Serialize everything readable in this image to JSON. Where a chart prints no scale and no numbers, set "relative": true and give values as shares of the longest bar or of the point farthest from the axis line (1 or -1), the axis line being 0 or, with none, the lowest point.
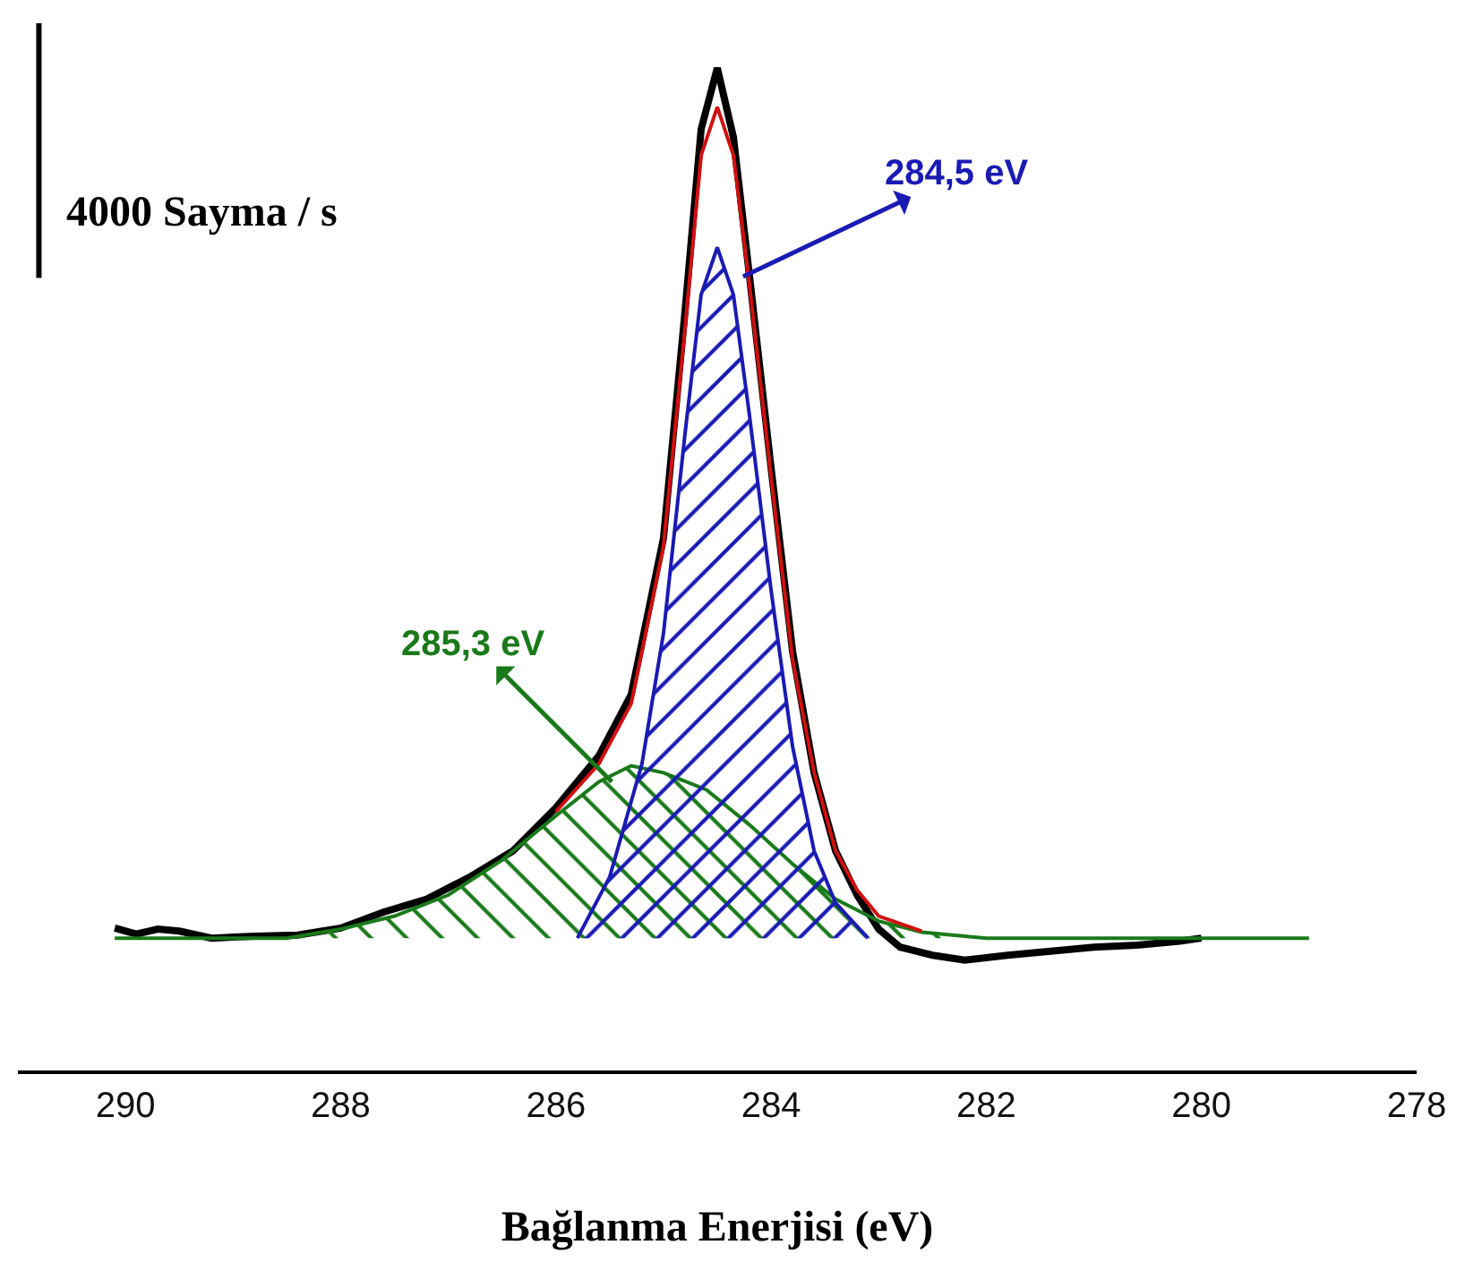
{
  "chart_data": {
    "type": "line",
    "relative": true,
    "xlabel": "Bağlanma Enerjisi (eV)",
    "xlim": [
      291,
      278
    ],
    "xticks": [
      290,
      288,
      286,
      284,
      282,
      280,
      278
    ],
    "grid": false,
    "tick_labels": "x",
    "marker": "none",
    "line_style": "solid",
    "annotations": [
      "4000 Sayma / s",
      {
        "text": "284,5 eV",
        "x": 284.26,
        "y": 0.792
      },
      {
        "text": "285,3 eV",
        "x": 285.48,
        "y": 0.288
      }
    ],
    "series": [
      {
        "color": "#000000",
        "x": [
          290.1,
          289.9,
          289.7,
          289.5,
          289.2,
          288.8,
          288.4,
          288.0,
          287.6,
          287.2,
          286.8,
          286.4,
          286.0,
          285.6,
          285.3,
          285.0,
          284.8,
          284.65,
          284.5,
          284.35,
          284.2,
          284.0,
          283.8,
          283.6,
          283.4,
          283.2,
          283.0,
          282.8,
          282.5,
          282.2,
          281.8,
          281.4,
          281.0,
          280.6,
          280.2,
          280.0
        ],
        "values": [
          0.142,
          0.136,
          0.141,
          0.139,
          0.132,
          0.134,
          0.135,
          0.142,
          0.158,
          0.171,
          0.193,
          0.219,
          0.262,
          0.314,
          0.375,
          0.531,
          0.757,
          0.939,
          1.0,
          0.931,
          0.792,
          0.601,
          0.418,
          0.297,
          0.219,
          0.175,
          0.141,
          0.123,
          0.115,
          0.11,
          0.115,
          0.119,
          0.123,
          0.125,
          0.129,
          0.132
        ]
      },
      {
        "type": "area",
        "color": "#1a7a1a",
        "x": [
          290.1,
          288.5,
          288.0,
          287.5,
          287.0,
          286.5,
          286.0,
          285.6,
          285.3,
          285.0,
          284.6,
          284.2,
          283.8,
          283.4,
          283.0,
          282.6,
          282.0,
          279.0
        ],
        "values": [
          0.132,
          0.132,
          0.141,
          0.154,
          0.175,
          0.21,
          0.254,
          0.288,
          0.304,
          0.297,
          0.28,
          0.245,
          0.206,
          0.171,
          0.149,
          0.138,
          0.132,
          0.132
        ]
      },
      {
        "type": "area",
        "color": "#1a1ab4",
        "x": [
          285.8,
          285.5,
          285.2,
          285.0,
          284.8,
          284.65,
          284.5,
          284.35,
          284.2,
          284.0,
          283.8,
          283.6,
          283.4,
          283.1
        ],
        "values": [
          0.132,
          0.193,
          0.306,
          0.436,
          0.635,
          0.774,
          0.821,
          0.774,
          0.653,
          0.479,
          0.323,
          0.219,
          0.167,
          0.132
        ]
      },
      {
        "color": "#d01010",
        "x": [
          286.0,
          285.6,
          285.3,
          285.0,
          284.8,
          284.65,
          284.5,
          284.35,
          284.2,
          284.0,
          283.8,
          283.6,
          283.4,
          283.2,
          283.0,
          282.6
        ],
        "values": [
          0.258,
          0.306,
          0.366,
          0.523,
          0.74,
          0.913,
          0.961,
          0.913,
          0.783,
          0.592,
          0.41,
          0.297,
          0.219,
          0.18,
          0.154,
          0.139
        ]
      }
    ]
  }
}
